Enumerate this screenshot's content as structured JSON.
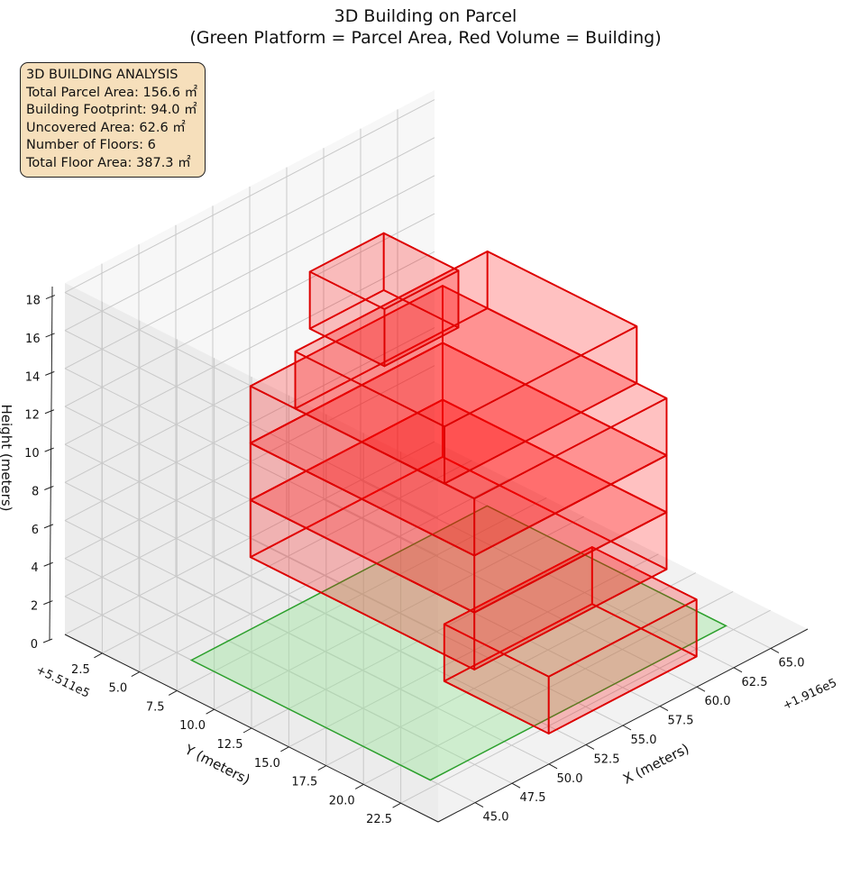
{
  "title_line1": "3D Building on Parcel",
  "title_line2": "(Green Platform = Parcel Area, Red Volume = Building)",
  "info": {
    "heading": "3D BUILDING ANALYSIS",
    "lines": [
      "Total Parcel Area: 156.6 ㎡",
      "Building Footprint: 94.0 ㎡",
      "Uncovered Area: 62.6 ㎡",
      "Number of Floors: 6",
      "Total Floor Area: 387.3 ㎡"
    ]
  },
  "chart_data": {
    "type": "3d-box",
    "xlabel": "X (meters)",
    "ylabel": "Y (meters)",
    "zlabel": "Height (meters)",
    "x_offset_label": "+1.916e5",
    "y_offset_label": "+5.511e5",
    "xlim": [
      42.5,
      67.5
    ],
    "ylim": [
      0,
      25
    ],
    "zlim": [
      0,
      18.5
    ],
    "x_ticks": [
      "45.0",
      "47.5",
      "50.0",
      "52.5",
      "55.0",
      "57.5",
      "60.0",
      "62.5",
      "65.0"
    ],
    "y_ticks": [
      "2.5",
      "5.0",
      "7.5",
      "10.0",
      "12.5",
      "15.0",
      "17.5",
      "20.0",
      "22.5"
    ],
    "z_ticks": [
      "0",
      "2",
      "4",
      "6",
      "8",
      "10",
      "12",
      "14",
      "16",
      "18"
    ],
    "parcel": {
      "x": [
        45.0,
        65.0
      ],
      "y": [
        6.0,
        22.0
      ],
      "z": 0,
      "color": "#2ca02c"
    },
    "building_color": "#ff0000",
    "floors": [
      {
        "floor": 1,
        "x": [
          52.0,
          62.0
        ],
        "y": [
          16.0,
          23.0
        ],
        "z": [
          0,
          3
        ]
      },
      {
        "floor": 2,
        "x": [
          50.0,
          63.0
        ],
        "y": [
          5.0,
          20.0
        ],
        "z": [
          3,
          6
        ]
      },
      {
        "floor": 3,
        "x": [
          50.0,
          63.0
        ],
        "y": [
          5.0,
          20.0
        ],
        "z": [
          6,
          9
        ]
      },
      {
        "floor": 4,
        "x": [
          50.0,
          63.0
        ],
        "y": [
          5.0,
          20.0
        ],
        "z": [
          9,
          12
        ]
      },
      {
        "floor": 5,
        "x": [
          50.0,
          63.0
        ],
        "y": [
          8.0,
          18.0
        ],
        "z": [
          12,
          15
        ]
      },
      {
        "floor": 6,
        "x": [
          52.0,
          57.0
        ],
        "y": [
          7.0,
          12.0
        ],
        "z": [
          15,
          18
        ]
      }
    ]
  }
}
